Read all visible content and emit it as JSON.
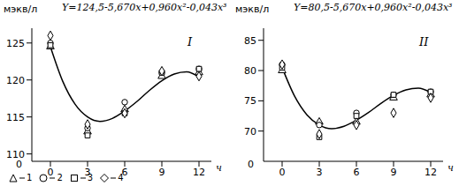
{
  "chart_data": [
    {
      "type": "scatter",
      "title": "I",
      "subtitle": "Y=124,5-5,670x+0,960x²-0,043x³",
      "y_label": "мэкв/л",
      "x_label": "ч",
      "y_break_label": "0",
      "xlim": [
        -1.5,
        13
      ],
      "xticks": [
        0,
        3,
        6,
        9,
        12
      ],
      "ylim": [
        109,
        127
      ],
      "yticks": [
        110,
        115,
        120,
        125
      ],
      "legend": "bottom left",
      "series": [
        {
          "type": "scatter",
          "name": "1",
          "marker": "triangle",
          "color": "#000000",
          "x": [
            0,
            3,
            6,
            9,
            12
          ],
          "values": [
            124.5,
            113,
            116,
            120.5,
            121
          ]
        },
        {
          "type": "scatter",
          "name": "2",
          "marker": "circle",
          "color": "#000000",
          "x": [
            0,
            3,
            6,
            9,
            12
          ],
          "values": [
            125,
            113.5,
            117,
            121,
            121.5
          ]
        },
        {
          "type": "scatter",
          "name": "3",
          "marker": "square",
          "color": "#000000",
          "x": [
            0,
            3,
            6,
            9,
            12
          ],
          "values": [
            124.7,
            112.5,
            115.5,
            121,
            121.5
          ]
        },
        {
          "type": "scatter",
          "name": "4",
          "marker": "diamond",
          "color": "#000000",
          "x": [
            0,
            3,
            6,
            9,
            12
          ],
          "values": [
            126,
            114,
            115.5,
            121.2,
            120.5
          ]
        },
        {
          "type": "line",
          "color": "#000000",
          "x": [
            0,
            1,
            2,
            3,
            4,
            5,
            6,
            7,
            8,
            9,
            10,
            11,
            12
          ],
          "values": [
            124.5,
            119.8,
            116.7,
            115,
            114.4,
            114.8,
            115.8,
            117.1,
            118.6,
            119.9,
            120.8,
            121.1,
            120.4
          ]
        }
      ]
    },
    {
      "type": "scatter",
      "title": "II",
      "subtitle": "Y=80,5-5,670x+0,960x²-0,043x³",
      "y_label": "мэкв/л",
      "x_label": "ч",
      "y_break_label": "0",
      "xlim": [
        -1.5,
        13
      ],
      "xticks": [
        0,
        3,
        6,
        9,
        12
      ],
      "ylim": [
        65,
        87
      ],
      "yticks": [
        70,
        75,
        80,
        85
      ],
      "series": [
        {
          "type": "scatter",
          "marker": "triangle",
          "color": "#000000",
          "x": [
            0,
            3,
            6,
            9,
            12
          ],
          "values": [
            80,
            71.5,
            71.5,
            75.5,
            76
          ]
        },
        {
          "type": "scatter",
          "marker": "circle",
          "color": "#000000",
          "x": [
            0,
            3,
            6,
            9,
            12
          ],
          "values": [
            81,
            71,
            73,
            76,
            76.5
          ]
        },
        {
          "type": "scatter",
          "marker": "square",
          "color": "#000000",
          "x": [
            0,
            3,
            6,
            9,
            12
          ],
          "values": [
            80.5,
            69,
            72.5,
            76,
            76.5
          ]
        },
        {
          "type": "scatter",
          "marker": "diamond",
          "color": "#000000",
          "x": [
            0,
            3,
            6,
            9,
            12
          ],
          "values": [
            81,
            69.5,
            71,
            73,
            75.5
          ]
        },
        {
          "type": "line",
          "color": "#000000",
          "x": [
            0,
            1,
            2,
            3,
            4,
            5,
            6,
            7,
            8,
            9,
            10,
            11,
            12
          ],
          "values": [
            80.5,
            75.8,
            72.7,
            71,
            70.4,
            70.8,
            71.8,
            73.1,
            74.6,
            75.9,
            76.8,
            77.1,
            76.4
          ]
        }
      ]
    }
  ]
}
